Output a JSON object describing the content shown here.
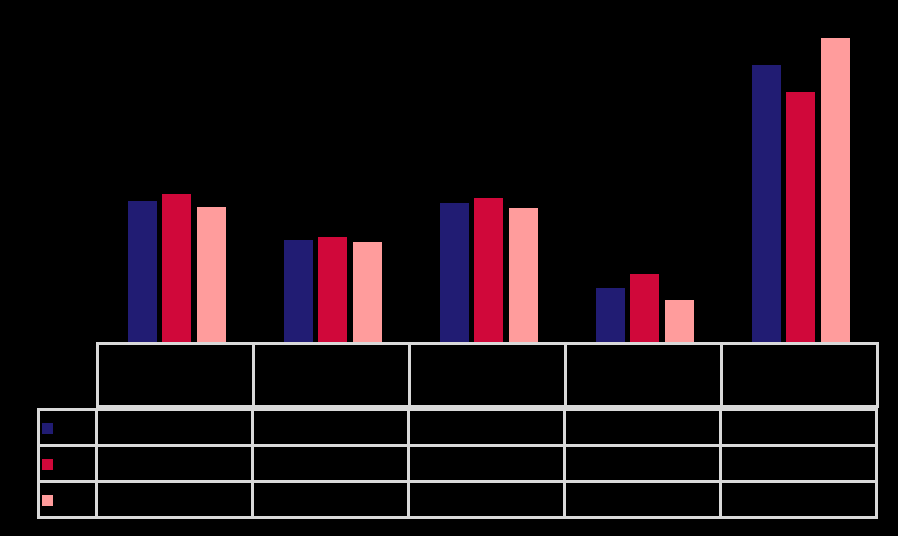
{
  "colors": {
    "background": "#000000",
    "table_border": "#d9d9d9",
    "series_navy": "#211c73",
    "series_crimson": "#d0083a",
    "series_pink": "#ff9c9c"
  },
  "chart_data": {
    "type": "bar",
    "title": "",
    "xlabel": "",
    "ylabel": "",
    "text_visibility": "all chart text is black on a black background and not legible; no axis tick labels, category names, series names or cell values are readable",
    "categories": [
      "",
      "",
      "",
      "",
      ""
    ],
    "series": [
      {
        "name": "",
        "color": "#211c73",
        "values": [
          141,
          102,
          139,
          54,
          277
        ]
      },
      {
        "name": "",
        "color": "#d0083a",
        "values": [
          148,
          105,
          144,
          68,
          250
        ]
      },
      {
        "name": "",
        "color": "#ff9c9c",
        "values": [
          135,
          100,
          134,
          42,
          304
        ]
      }
    ],
    "value_units": "screen pixels (bar heights; no labeled axis visible)",
    "ylim": [
      0,
      330
    ],
    "grid": false,
    "legend_position": "data-table-below-plot"
  },
  "table": {
    "header_cells": [
      "",
      "",
      "",
      "",
      ""
    ],
    "rows": [
      {
        "label": "",
        "swatch_color": "#211c73",
        "cells": [
          "",
          "",
          "",
          "",
          ""
        ]
      },
      {
        "label": "",
        "swatch_color": "#d0083a",
        "cells": [
          "",
          "",
          "",
          "",
          ""
        ]
      },
      {
        "label": "",
        "swatch_color": "#ff9c9c",
        "cells": [
          "",
          "",
          "",
          "",
          ""
        ]
      }
    ]
  }
}
